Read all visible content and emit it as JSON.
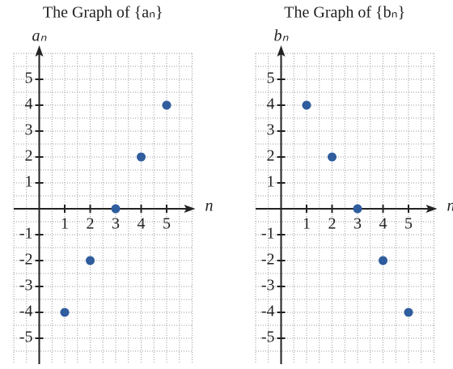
{
  "chart_data": [
    {
      "type": "scatter",
      "title": "The Graph of {aₙ}",
      "ylabel": "aₙ",
      "xlabel": "n",
      "x": [
        1,
        2,
        3,
        4,
        5
      ],
      "series": [
        {
          "values": [
            -4,
            -2,
            0,
            2,
            4
          ],
          "color": "#2f5d9e"
        }
      ],
      "xlim": [
        -1,
        6
      ],
      "ylim": [
        -6,
        6
      ],
      "xticks": [
        1,
        2,
        3,
        4,
        5
      ],
      "yticks": [
        -5,
        -4,
        -3,
        -2,
        -1,
        1,
        2,
        3,
        4,
        5
      ],
      "grid": true
    },
    {
      "type": "scatter",
      "title": "The Graph of {bₙ}",
      "ylabel": "bₙ",
      "xlabel": "n",
      "x": [
        1,
        2,
        3,
        4,
        5
      ],
      "series": [
        {
          "values": [
            4,
            2,
            0,
            -2,
            -4
          ],
          "color": "#2f5d9e"
        }
      ],
      "xlim": [
        -1,
        6
      ],
      "ylim": [
        -6,
        6
      ],
      "xticks": [
        1,
        2,
        3,
        4,
        5
      ],
      "yticks": [
        -5,
        -4,
        -3,
        -2,
        -1,
        1,
        2,
        3,
        4,
        5
      ],
      "grid": true
    }
  ]
}
